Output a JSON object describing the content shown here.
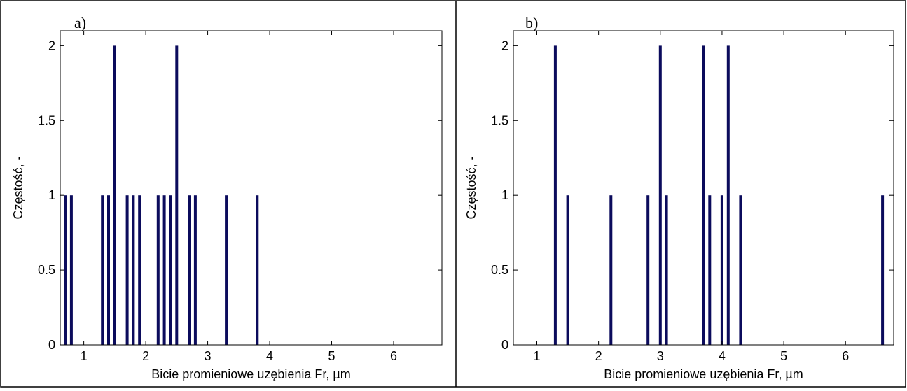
{
  "colors": {
    "bar": "#0b0b5c",
    "axis": "#000000",
    "frame": "#000000",
    "background": "#ffffff"
  },
  "chart_data": [
    {
      "panel_label": "a)",
      "type": "bar",
      "xlabel": "Bicie promieniowe uzębienia Fr, µm",
      "ylabel": "Częstość, -",
      "xlim": [
        0.62,
        6.78
      ],
      "ylim": [
        0,
        2.1
      ],
      "xticks": [
        1,
        2,
        3,
        4,
        5,
        6
      ],
      "xtick_labels": [
        "1",
        "2",
        "3",
        "4",
        "5",
        "6"
      ],
      "yticks": [
        0,
        0.5,
        1,
        1.5,
        2
      ],
      "ytick_labels": [
        "0",
        "0.5",
        "1",
        "1.5",
        "2"
      ],
      "grid": false,
      "bars": [
        {
          "x": 0.7,
          "y": 1
        },
        {
          "x": 0.8,
          "y": 1
        },
        {
          "x": 1.3,
          "y": 1
        },
        {
          "x": 1.4,
          "y": 1
        },
        {
          "x": 1.5,
          "y": 2
        },
        {
          "x": 1.7,
          "y": 1
        },
        {
          "x": 1.8,
          "y": 1
        },
        {
          "x": 1.9,
          "y": 1
        },
        {
          "x": 2.2,
          "y": 1
        },
        {
          "x": 2.3,
          "y": 1
        },
        {
          "x": 2.4,
          "y": 1
        },
        {
          "x": 2.5,
          "y": 2
        },
        {
          "x": 2.7,
          "y": 1
        },
        {
          "x": 2.8,
          "y": 1
        },
        {
          "x": 3.3,
          "y": 1
        },
        {
          "x": 3.8,
          "y": 1
        }
      ]
    },
    {
      "panel_label": "b)",
      "type": "bar",
      "xlabel": "Bicie promieniowe uzębienia Fr, µm",
      "ylabel": "Częstość, -",
      "xlim": [
        0.62,
        6.78
      ],
      "ylim": [
        0,
        2.1
      ],
      "xticks": [
        1,
        2,
        3,
        4,
        5,
        6
      ],
      "xtick_labels": [
        "1",
        "2",
        "3",
        "4",
        "5",
        "6"
      ],
      "yticks": [
        0,
        0.5,
        1,
        1.5,
        2
      ],
      "ytick_labels": [
        "0",
        "0.5",
        "1",
        "1.5",
        "2"
      ],
      "grid": false,
      "bars": [
        {
          "x": 1.3,
          "y": 2
        },
        {
          "x": 1.5,
          "y": 1
        },
        {
          "x": 2.2,
          "y": 1
        },
        {
          "x": 2.8,
          "y": 1
        },
        {
          "x": 3.0,
          "y": 2
        },
        {
          "x": 3.1,
          "y": 1
        },
        {
          "x": 3.7,
          "y": 2
        },
        {
          "x": 3.8,
          "y": 1
        },
        {
          "x": 4.0,
          "y": 1
        },
        {
          "x": 4.1,
          "y": 2
        },
        {
          "x": 4.3,
          "y": 1
        },
        {
          "x": 6.6,
          "y": 1
        }
      ]
    }
  ]
}
